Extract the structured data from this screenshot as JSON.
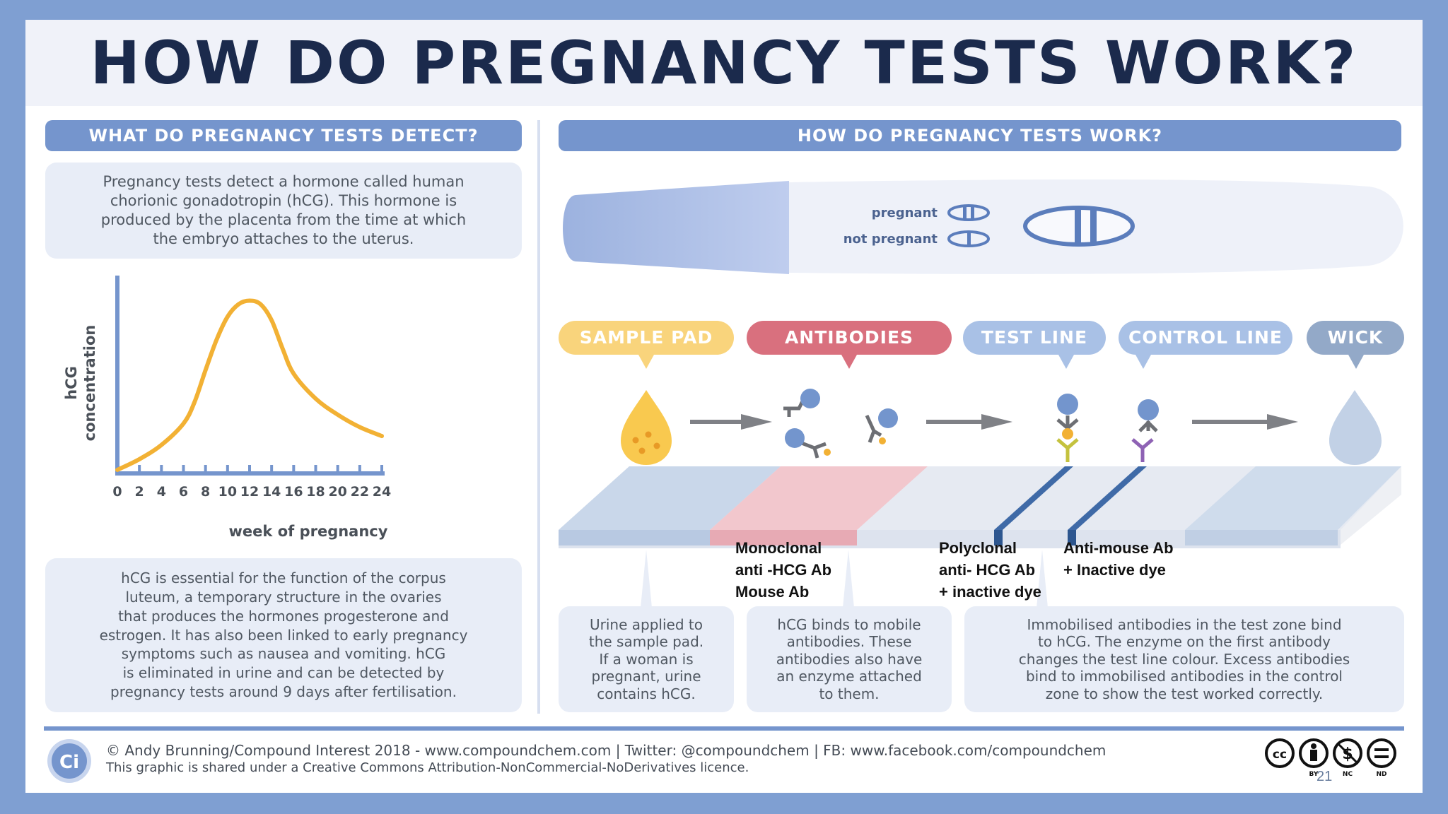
{
  "title": "HOW DO PREGNANCY TESTS WORK?",
  "left": {
    "header": "WHAT DO PREGNANCY TESTS DETECT?",
    "intro_lines": [
      "Pregnancy tests detect a hormone called human",
      "chorionic gonadotropin (hCG). This hormone is",
      "produced by the placenta from the time at which",
      "the embryo attaches to the uterus."
    ],
    "info_lines": [
      "hCG is essential for the function of the corpus",
      "luteum, a temporary structure in the ovaries",
      "that produces the hormones progesterone and",
      "estrogen. It has also been linked to early pregnancy",
      "symptoms such as nausea and vomiting. hCG",
      "is eliminated in urine and can be detected by",
      "pregnancy tests around 9 days after fertilisation."
    ]
  },
  "chart_data": {
    "type": "line",
    "title": "",
    "xlabel": "week of pregnancy",
    "ylabel_lines": [
      "hCG",
      "concentration"
    ],
    "x_ticks": [
      0,
      2,
      4,
      6,
      8,
      10,
      12,
      14,
      16,
      18,
      20,
      22,
      24
    ],
    "xlim": [
      0,
      24
    ],
    "ylim": [
      0,
      100
    ],
    "y_ticks_labeled": false,
    "series": [
      {
        "name": "hCG concentration",
        "color": "#f2b134",
        "x": [
          0,
          2,
          4,
          6,
          7,
          8,
          9,
          10,
          11,
          12,
          13,
          14,
          15,
          16,
          18,
          20,
          22,
          24
        ],
        "y": [
          2,
          8,
          16,
          28,
          40,
          58,
          75,
          88,
          95,
          97,
          95,
          86,
          70,
          56,
          42,
          33,
          26,
          21
        ]
      }
    ]
  },
  "right": {
    "header": "HOW DO PREGNANCY TESTS WORK?",
    "stick": {
      "pregnant_label": "pregnant",
      "not_pregnant_label": "not pregnant"
    },
    "stages": [
      {
        "label": "SAMPLE PAD",
        "color": "#f9d47c"
      },
      {
        "label": "ANTIBODIES",
        "color": "#d9707e"
      },
      {
        "label": "TEST LINE",
        "color": "#a9c1e6"
      },
      {
        "label": "CONTROL LINE",
        "color": "#a9c1e6"
      },
      {
        "label": "WICK",
        "color": "#93a9c8"
      }
    ],
    "antibody_labels": [
      {
        "lines": [
          "Monoclonal",
          "anti -HCG Ab",
          "Mouse Ab"
        ]
      },
      {
        "lines": [
          "Polyclonal",
          "anti- HCG Ab",
          "+ inactive dye"
        ]
      },
      {
        "lines": [
          "Anti-mouse Ab",
          "+ Inactive dye"
        ]
      }
    ],
    "explanations": [
      {
        "lines": [
          "Urine applied to",
          "the sample pad.",
          "If a woman is",
          "pregnant, urine",
          "contains hCG."
        ]
      },
      {
        "lines": [
          "hCG binds to mobile",
          "antibodies. These",
          "antibodies also have",
          "an enzyme attached",
          "to them."
        ]
      },
      {
        "lines": [
          "Immobilised antibodies in the test zone bind",
          "to hCG. The enzyme on the first antibody",
          "changes the test line colour. Excess antibodies",
          "bind to immobilised antibodies in the control",
          "zone to show the test worked correctly."
        ]
      }
    ]
  },
  "footer": {
    "logo_text": "Ci",
    "credit": "© Andy Brunning/Compound Interest 2018 - www.compoundchem.com  |  Twitter: @compoundchem  |  FB: www.facebook.com/compoundchem",
    "licence": "This graphic is shared under a Creative Commons Attribution-NonCommercial-NoDerivatives licence.",
    "cc_labels": [
      "BY",
      "NC",
      "ND"
    ],
    "cc_icons": [
      "cc-icon",
      "by-person-icon",
      "nc-dollar-icon",
      "nd-equals-icon"
    ]
  },
  "page_number": "21",
  "colors": {
    "frame": "#7f9fd2",
    "header": "#7595cd",
    "title": "#1b2a4c",
    "panel": "#e8edf7",
    "curve": "#f2b134",
    "axis": "#7595cd"
  }
}
